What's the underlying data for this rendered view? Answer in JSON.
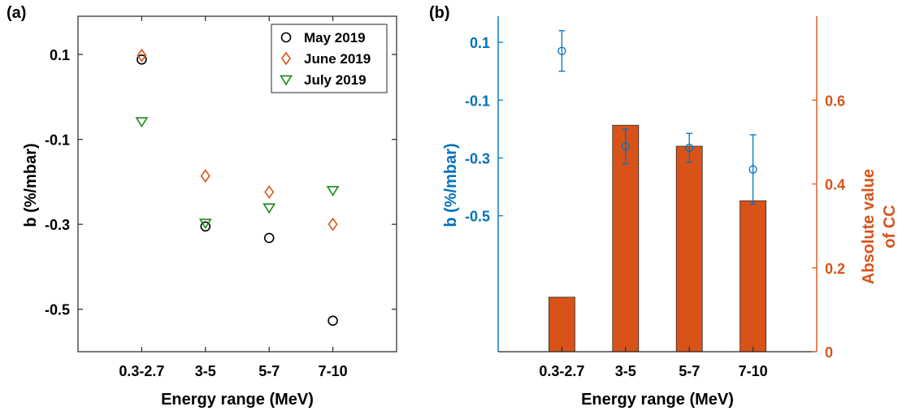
{
  "chart_data": [
    {
      "type": "scatter",
      "panel_label": "(a)",
      "xlabel": "Energy range (MeV)",
      "ylabel": "b (%/mbar)",
      "categories": [
        "0.3-2.7",
        "3-5",
        "5-7",
        "7-10"
      ],
      "yticks": [
        "0.1",
        "-0.1",
        "-0.3",
        "-0.5"
      ],
      "ytick_values": [
        0.1,
        -0.1,
        -0.3,
        -0.5
      ],
      "ylim": [
        -0.6,
        0.19
      ],
      "grid": false,
      "legend_position": "top-right",
      "series": [
        {
          "name": "May 2019",
          "marker": "circle",
          "color": "#000000",
          "values": [
            0.088,
            -0.305,
            -0.332,
            -0.527
          ]
        },
        {
          "name": "June 2019",
          "marker": "diamond",
          "color": "#D95319",
          "values": [
            0.098,
            -0.186,
            -0.224,
            -0.3
          ]
        },
        {
          "name": "July 2019",
          "marker": "triangle",
          "color": "#1A8A1A",
          "values": [
            -0.058,
            -0.297,
            -0.261,
            -0.22
          ]
        }
      ]
    },
    {
      "type": "bar+errorbar",
      "panel_label": "(b)",
      "xlabel": "Energy range (MeV)",
      "categories": [
        "0.3-2.7",
        "3-5",
        "5-7",
        "7-10"
      ],
      "left_axis": {
        "label": "b (%/mbar)",
        "color": "#0072BD",
        "yticks": [
          "0.1",
          "-0.1",
          "-0.3",
          "-0.5"
        ],
        "ytick_values": [
          0.1,
          -0.1,
          -0.3,
          -0.5
        ],
        "ylim": [
          -0.97,
          0.19
        ],
        "points": [
          0.07,
          -0.26,
          -0.265,
          -0.34
        ],
        "errors": [
          0.07,
          0.06,
          0.05,
          0.12
        ]
      },
      "right_axis": {
        "label_line1": "Absolute value",
        "label_line2": "of CC",
        "color": "#D95319",
        "yticks": [
          "0",
          "0.2",
          "0.4",
          "0.6"
        ],
        "ytick_values": [
          0,
          0.2,
          0.4,
          0.6
        ],
        "ylim": [
          0,
          0.8
        ],
        "bars": [
          0.13,
          0.54,
          0.49,
          0.36
        ]
      },
      "grid": false
    }
  ]
}
